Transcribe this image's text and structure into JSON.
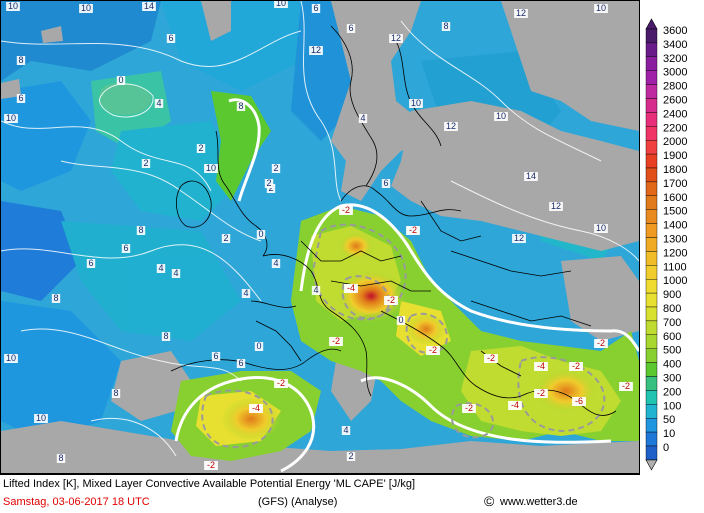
{
  "map": {
    "title_line": "Lifted Index [K], Mixed Layer Convective Available Potential Energy 'ML CAPE' [J/kg]",
    "date_text": "Samstag, 03-06-2017   18 UTC",
    "model_text": "(GFS)   (Analyse)",
    "credit_text": "www.wetter3.de",
    "copyright_symbol": "©"
  },
  "scale": {
    "labels": [
      "3600",
      "3400",
      "3200",
      "3000",
      "2800",
      "2600",
      "2400",
      "2200",
      "2000",
      "1900",
      "1800",
      "1700",
      "1600",
      "1500",
      "1400",
      "1300",
      "1200",
      "1100",
      "1000",
      "900",
      "800",
      "700",
      "600",
      "500",
      "400",
      "300",
      "200",
      "100",
      "50",
      "10",
      "0"
    ],
    "colors": [
      "#4a1a6b",
      "#6a1b8a",
      "#8b1e9e",
      "#a020a8",
      "#c02aa0",
      "#d82c8c",
      "#e8307a",
      "#f03566",
      "#f04040",
      "#e84020",
      "#e05018",
      "#e06818",
      "#e07a1a",
      "#e88a20",
      "#f09a24",
      "#f0aa24",
      "#f0bc28",
      "#f0cc2c",
      "#f0dc30",
      "#e8e030",
      "#d8e030",
      "#c0dc30",
      "#a8d830",
      "#88d030",
      "#5cc830",
      "#38c080",
      "#20c4b0",
      "#20b4d0",
      "#2096e0",
      "#1e78d8",
      "#1e60c8"
    ]
  },
  "li_labels": [
    {
      "t": "10"
    },
    {
      "t": "8"
    },
    {
      "t": "10"
    },
    {
      "t": "14"
    },
    {
      "t": "10"
    },
    {
      "t": "6"
    },
    {
      "t": "6"
    },
    {
      "t": "12"
    },
    {
      "t": "8"
    },
    {
      "t": "12"
    },
    {
      "t": "10"
    },
    {
      "t": "0"
    },
    {
      "t": "2"
    },
    {
      "t": "6"
    },
    {
      "t": "10"
    },
    {
      "t": "4"
    },
    {
      "t": "2"
    },
    {
      "t": "6"
    },
    {
      "t": "4"
    },
    {
      "t": "2"
    },
    {
      "t": "8"
    },
    {
      "t": "12"
    },
    {
      "t": "10"
    },
    {
      "t": "12"
    },
    {
      "t": "10"
    },
    {
      "t": "14"
    },
    {
      "t": "12"
    },
    {
      "t": "12"
    },
    {
      "t": "10"
    },
    {
      "t": "6"
    },
    {
      "t": "4"
    },
    {
      "t": "-2"
    },
    {
      "t": "-2"
    },
    {
      "t": "-4"
    },
    {
      "t": "-2"
    },
    {
      "t": "0"
    },
    {
      "t": "-2"
    },
    {
      "t": "-2"
    },
    {
      "t": "-2"
    },
    {
      "t": "-2"
    },
    {
      "t": "-2"
    },
    {
      "t": "-4"
    },
    {
      "t": "-6"
    },
    {
      "t": "-2"
    },
    {
      "t": "-4"
    },
    {
      "t": "-2"
    },
    {
      "t": "-2"
    },
    {
      "t": "-4"
    },
    {
      "t": "-2"
    },
    {
      "t": "-2"
    },
    {
      "t": "0"
    },
    {
      "t": "2"
    },
    {
      "t": "4"
    },
    {
      "t": "6"
    },
    {
      "t": "8"
    },
    {
      "t": "10"
    },
    {
      "t": "8"
    },
    {
      "t": "6"
    },
    {
      "t": "4"
    },
    {
      "t": "2"
    },
    {
      "t": "4"
    },
    {
      "t": "4"
    },
    {
      "t": "2"
    },
    {
      "t": "8"
    },
    {
      "t": "6"
    },
    {
      "t": "10"
    },
    {
      "t": "8"
    },
    {
      "t": "6"
    },
    {
      "t": "8"
    },
    {
      "t": "10"
    },
    {
      "t": "4"
    },
    {
      "t": "2"
    },
    {
      "t": "0"
    }
  ]
}
